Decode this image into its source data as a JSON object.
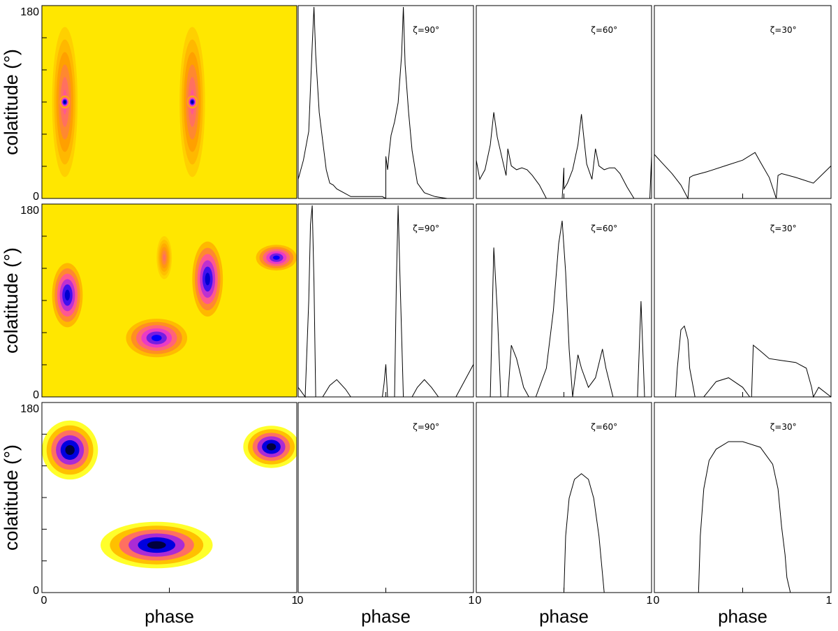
{
  "chart_data": [
    {
      "type": "heatmap",
      "row": 0,
      "ylabel": "colatitude (°)",
      "xlabel": "",
      "yticks": [
        "0",
        "180"
      ],
      "ylim": [
        0,
        180
      ],
      "xlim": [
        0,
        1
      ],
      "colormap": [
        "#ffffff",
        "#ffff00",
        "#ffa000",
        "#ff40c0",
        "#0000ff",
        "#000040"
      ],
      "blobs": [
        {
          "cx": 0.09,
          "cy": 90,
          "rx": 0.05,
          "ry": 70,
          "level": 0.55
        },
        {
          "cx": 0.59,
          "cy": 90,
          "rx": 0.05,
          "ry": 70,
          "level": 0.55
        },
        {
          "cx": 0.09,
          "cy": 90,
          "rx": 0.02,
          "ry": 6,
          "level": 0.95
        },
        {
          "cx": 0.59,
          "cy": 90,
          "rx": 0.02,
          "ry": 6,
          "level": 0.95
        }
      ],
      "background_level": 0.25
    },
    {
      "type": "line",
      "row": 0,
      "annotation": "ζ=90°",
      "xlim": [
        0,
        1
      ],
      "ylim": [
        0,
        1
      ],
      "x": [
        0,
        0.03,
        0.06,
        0.08,
        0.09,
        0.1,
        0.12,
        0.14,
        0.16,
        0.18,
        0.2,
        0.22,
        0.26,
        0.3,
        0.4,
        0.48,
        0.5,
        0.5,
        0.51,
        0.52,
        0.53,
        0.55,
        0.57,
        0.59,
        0.6,
        0.61,
        0.63,
        0.65,
        0.68,
        0.72,
        0.78,
        0.85,
        0.9,
        1.0
      ],
      "y": [
        0.1,
        0.2,
        0.35,
        0.8,
        1.0,
        0.75,
        0.45,
        0.3,
        0.15,
        0.08,
        0.07,
        0.05,
        0.03,
        0.01,
        0.01,
        0.01,
        0.0,
        0.22,
        0.15,
        0.25,
        0.33,
        0.4,
        0.5,
        0.75,
        1.0,
        0.7,
        0.45,
        0.25,
        0.08,
        0.03,
        0.01,
        0.0,
        0.0,
        0.0
      ]
    },
    {
      "type": "line",
      "row": 0,
      "annotation": "ζ=60°",
      "xlim": [
        0,
        1
      ],
      "ylim": [
        0,
        1
      ],
      "x": [
        0,
        0.02,
        0.05,
        0.08,
        0.1,
        0.12,
        0.15,
        0.17,
        0.18,
        0.2,
        0.23,
        0.26,
        0.29,
        0.32,
        0.36,
        0.4,
        0.45,
        0.49,
        0.5,
        0.5,
        0.52,
        0.55,
        0.58,
        0.6,
        0.61,
        0.63,
        0.66,
        0.68,
        0.7,
        0.73,
        0.76,
        0.79,
        0.82,
        0.86,
        0.9,
        0.95,
        0.99,
        1.0
      ],
      "y": [
        0.2,
        0.1,
        0.15,
        0.28,
        0.45,
        0.32,
        0.2,
        0.12,
        0.26,
        0.17,
        0.15,
        0.16,
        0.15,
        0.12,
        0.07,
        0.0,
        0.0,
        0.0,
        0.16,
        0.05,
        0.08,
        0.15,
        0.28,
        0.44,
        0.35,
        0.18,
        0.1,
        0.26,
        0.17,
        0.15,
        0.16,
        0.16,
        0.13,
        0.06,
        0.0,
        0.0,
        0.0,
        0.22
      ]
    },
    {
      "type": "line",
      "row": 0,
      "annotation": "ζ=30°",
      "xlim": [
        0,
        1
      ],
      "ylim": [
        0,
        1
      ],
      "x": [
        0,
        0.05,
        0.1,
        0.15,
        0.19,
        0.2,
        0.22,
        0.3,
        0.4,
        0.5,
        0.57,
        0.6,
        0.65,
        0.69,
        0.7,
        0.72,
        0.8,
        0.9,
        1.0
      ],
      "y": [
        0.23,
        0.18,
        0.13,
        0.07,
        0.0,
        0.11,
        0.12,
        0.14,
        0.17,
        0.2,
        0.24,
        0.19,
        0.11,
        0.0,
        0.12,
        0.13,
        0.11,
        0.08,
        0.17
      ]
    },
    {
      "type": "heatmap",
      "row": 1,
      "ylabel": "colatitude (°)",
      "xlabel": "",
      "yticks": [
        "0",
        "180"
      ],
      "ylim": [
        0,
        180
      ],
      "xlim": [
        0,
        1
      ],
      "colormap": [
        "#ffffff",
        "#ffff00",
        "#ffa000",
        "#ff40c0",
        "#0000ff",
        "#000040"
      ],
      "blobs": [
        {
          "cx": 0.1,
          "cy": 95,
          "rx": 0.06,
          "ry": 30,
          "level": 0.85
        },
        {
          "cx": 0.45,
          "cy": 55,
          "rx": 0.12,
          "ry": 18,
          "level": 0.8
        },
        {
          "cx": 0.65,
          "cy": 110,
          "rx": 0.06,
          "ry": 35,
          "level": 0.85
        },
        {
          "cx": 0.92,
          "cy": 130,
          "rx": 0.08,
          "ry": 12,
          "level": 0.8
        },
        {
          "cx": 0.48,
          "cy": 130,
          "rx": 0.03,
          "ry": 20,
          "level": 0.5
        }
      ],
      "background_level": 0.25
    },
    {
      "type": "line",
      "row": 1,
      "annotation": "ζ=90°",
      "xlim": [
        0,
        1
      ],
      "ylim": [
        0,
        1
      ],
      "x": [
        0,
        0.04,
        0.06,
        0.07,
        0.08,
        0.09,
        0.1,
        0.12,
        0.14,
        0.18,
        0.22,
        0.27,
        0.3,
        0.4,
        0.48,
        0.49,
        0.5,
        0.51,
        0.52,
        0.54,
        0.55,
        0.56,
        0.57,
        0.58,
        0.6,
        0.62,
        0.65,
        0.68,
        0.72,
        0.76,
        0.8,
        0.85,
        0.9,
        1.0
      ],
      "y": [
        0.05,
        0.0,
        0.5,
        0.9,
        1.0,
        0.6,
        0.0,
        0.0,
        0.0,
        0.06,
        0.09,
        0.04,
        0.0,
        0.0,
        0.0,
        0.07,
        0.17,
        0.0,
        0.0,
        0.0,
        0.0,
        0.6,
        1.0,
        0.65,
        0.0,
        0.0,
        0.0,
        0.05,
        0.09,
        0.05,
        0.0,
        0.0,
        0.0,
        0.17
      ]
    },
    {
      "type": "line",
      "row": 1,
      "annotation": "ζ=60°",
      "xlim": [
        0,
        1
      ],
      "ylim": [
        0,
        1
      ],
      "x": [
        0,
        0.08,
        0.1,
        0.12,
        0.14,
        0.18,
        0.2,
        0.23,
        0.27,
        0.3,
        0.34,
        0.4,
        0.44,
        0.47,
        0.49,
        0.51,
        0.53,
        0.55,
        0.58,
        0.6,
        0.64,
        0.68,
        0.72,
        0.74,
        0.78,
        0.82,
        0.86,
        0.92,
        0.94,
        0.96,
        1.0
      ],
      "y": [
        0.0,
        0.0,
        0.78,
        0.45,
        0.0,
        0.0,
        0.27,
        0.2,
        0.05,
        0.0,
        0.0,
        0.15,
        0.45,
        0.8,
        0.92,
        0.65,
        0.25,
        0.0,
        0.22,
        0.15,
        0.05,
        0.1,
        0.25,
        0.15,
        0.0,
        0.0,
        0.0,
        0.0,
        0.5,
        0.0,
        0.0
      ]
    },
    {
      "type": "line",
      "row": 1,
      "annotation": "ζ=30°",
      "xlim": [
        0,
        1
      ],
      "ylim": [
        0,
        1
      ],
      "x": [
        0,
        0.12,
        0.13,
        0.15,
        0.17,
        0.19,
        0.2,
        0.23,
        0.28,
        0.35,
        0.42,
        0.5,
        0.54,
        0.55,
        0.56,
        0.6,
        0.65,
        0.72,
        0.8,
        0.86,
        0.89,
        0.9,
        0.93,
        1.0
      ],
      "y": [
        0.0,
        0.0,
        0.15,
        0.35,
        0.37,
        0.3,
        0.15,
        0.0,
        0.0,
        0.08,
        0.1,
        0.05,
        0.0,
        0.0,
        0.27,
        0.24,
        0.2,
        0.19,
        0.18,
        0.15,
        0.05,
        0.0,
        0.05,
        0.0
      ]
    },
    {
      "type": "heatmap",
      "row": 2,
      "ylabel": "colatitude (°)",
      "xlabel": "phase",
      "xticks": [
        "0",
        "1"
      ],
      "yticks": [
        "0",
        "180"
      ],
      "ylim": [
        0,
        180
      ],
      "xlim": [
        0,
        1
      ],
      "colormap": [
        "#ffffff",
        "#ffff00",
        "#ffa000",
        "#ff40c0",
        "#0000ff",
        "#000040"
      ],
      "blobs": [
        {
          "cx": 0.11,
          "cy": 135,
          "rx": 0.11,
          "ry": 28,
          "level": 1.0
        },
        {
          "cx": 0.45,
          "cy": 45,
          "rx": 0.22,
          "ry": 22,
          "level": 1.0
        },
        {
          "cx": 0.9,
          "cy": 138,
          "rx": 0.11,
          "ry": 20,
          "level": 1.0
        }
      ],
      "background_level": 0.0
    },
    {
      "type": "line",
      "row": 2,
      "annotation": "ζ=90°",
      "xlabel": "phase",
      "xticks": [
        "0",
        "1"
      ],
      "xlim": [
        0,
        1
      ],
      "ylim": [
        0,
        1
      ],
      "x": [
        0,
        1
      ],
      "y": [
        0,
        0
      ]
    },
    {
      "type": "line",
      "row": 2,
      "annotation": "ζ=60°",
      "xlabel": "phase",
      "xticks": [
        "0",
        "1"
      ],
      "xlim": [
        0,
        1
      ],
      "ylim": [
        0,
        1
      ],
      "x": [
        0,
        0.5,
        0.51,
        0.53,
        0.56,
        0.6,
        0.64,
        0.67,
        0.7,
        0.72,
        0.73,
        1.0
      ],
      "y": [
        0,
        0,
        0.3,
        0.5,
        0.6,
        0.63,
        0.6,
        0.5,
        0.3,
        0.1,
        0.0,
        0.0
      ]
    },
    {
      "type": "line",
      "row": 2,
      "annotation": "ζ=30°",
      "xlabel": "phase",
      "xticks": [
        "0",
        "1"
      ],
      "xlim": [
        0,
        1
      ],
      "ylim": [
        0,
        1
      ],
      "x": [
        0,
        0.25,
        0.26,
        0.28,
        0.31,
        0.35,
        0.42,
        0.5,
        0.6,
        0.67,
        0.7,
        0.72,
        0.74,
        0.75,
        0.77,
        1.0
      ],
      "y": [
        0,
        0,
        0.3,
        0.55,
        0.7,
        0.76,
        0.8,
        0.8,
        0.77,
        0.68,
        0.55,
        0.35,
        0.2,
        0.08,
        0.0,
        0.0
      ]
    }
  ]
}
